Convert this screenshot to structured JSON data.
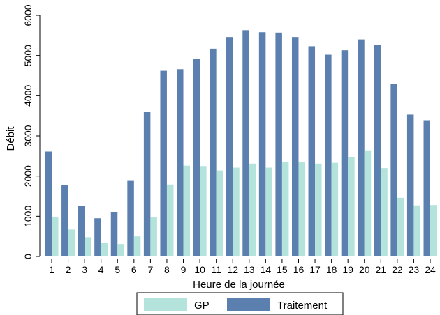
{
  "chart_data": {
    "type": "bar",
    "xlabel": "Heure de la journée",
    "ylabel": "Débit",
    "ylim": [
      0,
      6000
    ],
    "yticks": [
      0,
      1000,
      2000,
      3000,
      4000,
      5000,
      6000
    ],
    "grid": false,
    "legend_position": "bottom",
    "categories": [
      "1",
      "2",
      "3",
      "4",
      "5",
      "6",
      "7",
      "8",
      "9",
      "10",
      "11",
      "12",
      "13",
      "14",
      "15",
      "16",
      "17",
      "18",
      "19",
      "20",
      "21",
      "22",
      "23",
      "24"
    ],
    "series": [
      {
        "name": "GP",
        "color": "#b3e3da",
        "values": [
          990,
          670,
          480,
          330,
          310,
          500,
          970,
          1790,
          2260,
          2250,
          2140,
          2210,
          2310,
          2210,
          2340,
          2340,
          2310,
          2330,
          2470,
          2640,
          2200,
          1460,
          1270,
          1280
        ]
      },
      {
        "name": "Traitement",
        "color": "#5b80b0",
        "values": [
          2610,
          1770,
          1260,
          950,
          1110,
          1880,
          3600,
          4620,
          4660,
          4910,
          5170,
          5460,
          5630,
          5580,
          5570,
          5460,
          5230,
          5020,
          5130,
          5400,
          5270,
          4290,
          3530,
          3390
        ]
      }
    ]
  }
}
